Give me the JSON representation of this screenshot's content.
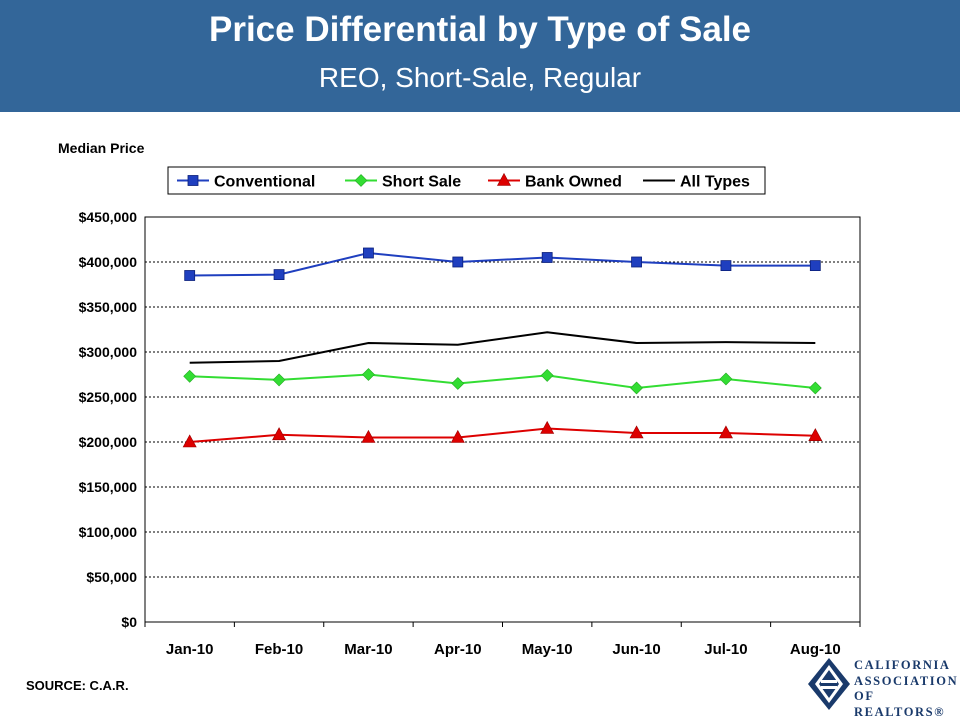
{
  "header": {
    "title": "Price Differential by Type of Sale",
    "subtitle": "REO, Short-Sale, Regular"
  },
  "footer": {
    "source": "SOURCE: C.A.R."
  },
  "logo": {
    "line1": "CALIFORNIA",
    "line2": "ASSOCIATION",
    "line3": "OF REALTORS®"
  },
  "chart_data": {
    "type": "line",
    "title": "",
    "ylabel": "Median Price",
    "xlabel": "",
    "categories": [
      "Jan-10",
      "Feb-10",
      "Mar-10",
      "Apr-10",
      "May-10",
      "Jun-10",
      "Jul-10",
      "Aug-10"
    ],
    "ylim": [
      0,
      450000
    ],
    "yticks": [
      0,
      50000,
      100000,
      150000,
      200000,
      250000,
      300000,
      350000,
      400000,
      450000
    ],
    "ytick_labels": [
      "$0",
      "$50,000",
      "$100,000",
      "$150,000",
      "$200,000",
      "$250,000",
      "$300,000",
      "$350,000",
      "$400,000",
      "$450,000"
    ],
    "grid": "horizontal dashed",
    "legend_position": "top",
    "series": [
      {
        "name": "Conventional",
        "color": "#1f3fbf",
        "marker": "square",
        "values": [
          385000,
          386000,
          410000,
          400000,
          405000,
          400000,
          396000,
          396000
        ]
      },
      {
        "name": "Short Sale",
        "color": "#33dd33",
        "marker": "diamond",
        "values": [
          273000,
          269000,
          275000,
          265000,
          274000,
          260000,
          270000,
          260000
        ]
      },
      {
        "name": "Bank Owned",
        "color": "#dd0000",
        "marker": "triangle",
        "values": [
          200000,
          208000,
          205000,
          205000,
          215000,
          210000,
          210000,
          207000
        ]
      },
      {
        "name": "All Types",
        "color": "#000000",
        "marker": "none",
        "values": [
          288000,
          290000,
          310000,
          308000,
          322000,
          310000,
          311000,
          310000
        ]
      }
    ]
  }
}
